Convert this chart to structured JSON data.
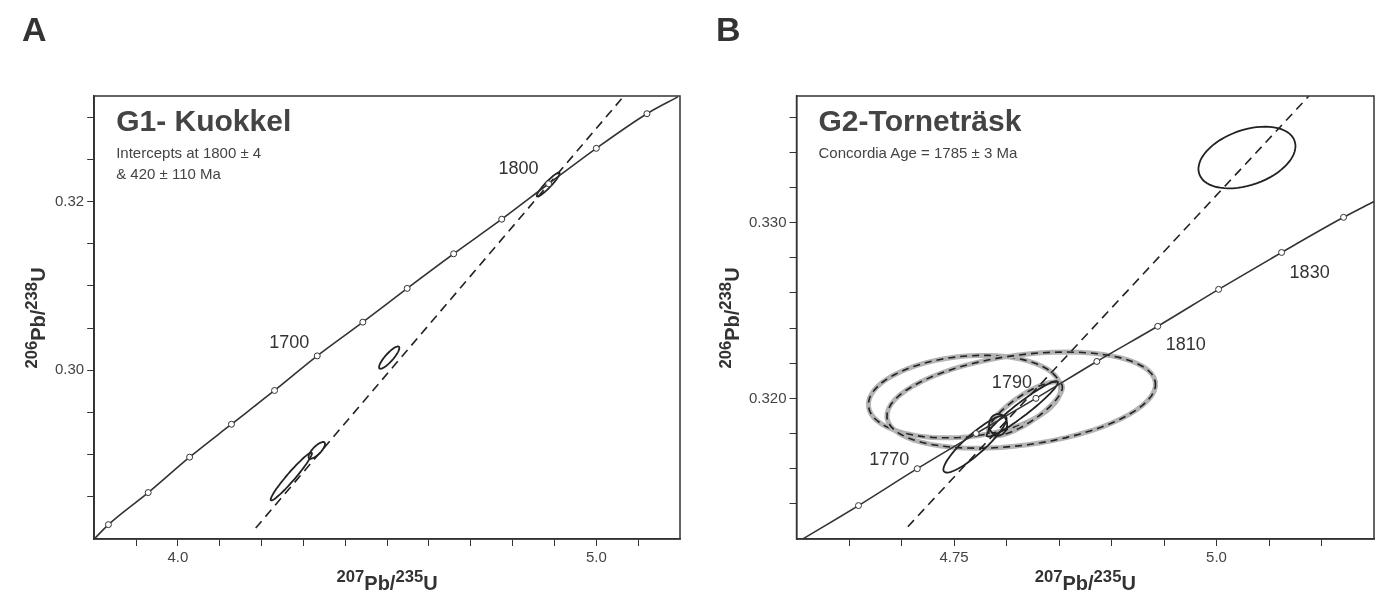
{
  "chart_data": [
    {
      "type": "line",
      "title": "G1- Kuokkel",
      "subtitle": "Intercepts at 1800 ± 4\n& 420 ± 110 Ma",
      "xlabel": "$^{207}$Pb/$^{235}$U",
      "ylabel": "$^{206}$Pb/$^{238}$U",
      "annotations": [
        "A",
        {
          "text": "1700",
          "x": 4.333,
          "y": 0.3017
        },
        {
          "text": "1800",
          "x": 4.886,
          "y": 0.3221
        }
      ],
      "xlim": [
        3.8,
        5.2
      ],
      "ylim": [
        0.28,
        0.3325
      ],
      "xticks": [
        {
          "value": 3.9,
          "label": null
        },
        {
          "value": 4.0,
          "label": "4.0"
        },
        {
          "value": 4.1,
          "label": null
        },
        {
          "value": 4.2,
          "label": null
        },
        {
          "value": 4.3,
          "label": null
        },
        {
          "value": 4.4,
          "label": null
        },
        {
          "value": 4.5,
          "label": null
        },
        {
          "value": 4.6,
          "label": null
        },
        {
          "value": 4.7,
          "label": null
        },
        {
          "value": 4.8,
          "label": null
        },
        {
          "value": 4.9,
          "label": null
        },
        {
          "value": 5.0,
          "label": "5.0"
        },
        {
          "value": 5.1,
          "label": null
        }
      ],
      "yticks": [
        {
          "value": 0.285,
          "label": null
        },
        {
          "value": 0.29,
          "label": null
        },
        {
          "value": 0.295,
          "label": null
        },
        {
          "value": 0.3,
          "label": "0.30"
        },
        {
          "value": 0.305,
          "label": null
        },
        {
          "value": 0.31,
          "label": null
        },
        {
          "value": 0.315,
          "label": null
        },
        {
          "value": 0.32,
          "label": "0.32"
        },
        {
          "value": 0.325,
          "label": null
        },
        {
          "value": 0.33,
          "label": null
        }
      ],
      "series": [
        {
          "type": "line",
          "color": "#333333",
          "marker": "none",
          "line_style": "solid",
          "x": [
            3.8,
            3.834,
            3.929,
            4.028,
            4.128,
            4.231,
            4.333,
            4.442,
            4.548,
            4.659,
            4.774,
            4.886,
            5.0,
            5.121,
            5.195
          ],
          "values": [
            0.28,
            0.2817,
            0.2855,
            0.2897,
            0.2936,
            0.2976,
            0.3017,
            0.3057,
            0.3097,
            0.3138,
            0.3179,
            0.3221,
            0.3263,
            0.3304,
            0.3324
          ]
        },
        {
          "type": "scatter",
          "color": "#333333",
          "marker": "circle",
          "x": [
            3.834,
            3.929,
            4.028,
            4.128,
            4.231,
            4.333,
            4.442,
            4.548,
            4.659,
            4.774,
            4.886,
            5.0,
            5.121
          ],
          "values": [
            0.2817,
            0.2855,
            0.2897,
            0.2936,
            0.2976,
            0.3017,
            0.3057,
            0.3097,
            0.3138,
            0.3179,
            0.3221,
            0.3263,
            0.3304
          ]
        },
        {
          "type": "line",
          "color": "#222222",
          "marker": "none",
          "line_style": "dashed",
          "x": [
            4.186,
            5.066
          ],
          "values": [
            0.2813,
            0.3325
          ]
        }
      ]
    },
    {
      "type": "line",
      "title": "G2-Torneträsk",
      "subtitle": "Concordia Age = 1785 ± 3 Ma",
      "xlabel": "$^{207}$Pb/$^{235}$U",
      "ylabel": "$^{206}$Pb/$^{238}$U",
      "annotations": [
        "B",
        {
          "text": "1770",
          "x": 4.715,
          "y": 0.316
        },
        {
          "text": "1790",
          "x": 4.828,
          "y": 0.32
        },
        {
          "text": "1810",
          "x": 4.944,
          "y": 0.3241
        },
        {
          "text": "1830",
          "x": 5.062,
          "y": 0.3283
        }
      ],
      "xlim": [
        4.6,
        5.15
      ],
      "ylim": [
        0.312,
        0.3372
      ],
      "xticks": [
        {
          "value": 4.65,
          "label": null
        },
        {
          "value": 4.7,
          "label": null
        },
        {
          "value": 4.75,
          "label": "4.75"
        },
        {
          "value": 4.8,
          "label": null
        },
        {
          "value": 4.85,
          "label": null
        },
        {
          "value": 4.9,
          "label": null
        },
        {
          "value": 4.95,
          "label": null
        },
        {
          "value": 5.0,
          "label": "5.0"
        },
        {
          "value": 5.05,
          "label": null
        },
        {
          "value": 5.1,
          "label": null
        }
      ],
      "yticks": [
        {
          "value": 0.314,
          "label": null
        },
        {
          "value": 0.316,
          "label": null
        },
        {
          "value": 0.318,
          "label": null
        },
        {
          "value": 0.32,
          "label": "0.320"
        },
        {
          "value": 0.322,
          "label": null
        },
        {
          "value": 0.324,
          "label": null
        },
        {
          "value": 0.326,
          "label": null
        },
        {
          "value": 0.328,
          "label": null
        },
        {
          "value": 0.33,
          "label": "0.330"
        },
        {
          "value": 0.332,
          "label": null
        },
        {
          "value": 0.334,
          "label": null
        },
        {
          "value": 0.336,
          "label": null
        }
      ],
      "series": [
        {
          "type": "line",
          "color": "#333333",
          "marker": "none",
          "line_style": "solid",
          "x": [
            4.606,
            4.659,
            4.715,
            4.771,
            4.828,
            4.886,
            4.944,
            5.002,
            5.062,
            5.121,
            5.15
          ],
          "values": [
            0.312,
            0.3139,
            0.316,
            0.318,
            0.32,
            0.3221,
            0.3241,
            0.3262,
            0.3283,
            0.3303,
            0.3312
          ]
        },
        {
          "type": "scatter",
          "color": "#333333",
          "marker": "circle",
          "x": [
            4.659,
            4.715,
            4.771,
            4.828,
            4.886,
            4.944,
            5.002,
            5.062,
            5.121
          ],
          "values": [
            0.3139,
            0.316,
            0.318,
            0.32,
            0.3221,
            0.3241,
            0.3262,
            0.3283,
            0.3303
          ]
        },
        {
          "type": "line",
          "color": "#222222",
          "marker": "none",
          "line_style": "dashed",
          "x": [
            4.706,
            5.088
          ],
          "values": [
            0.3127,
            0.3372
          ]
        }
      ]
    }
  ]
}
